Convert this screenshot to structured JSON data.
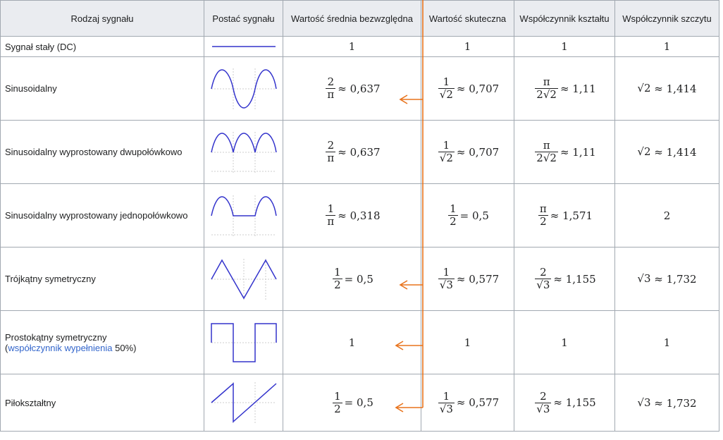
{
  "headers": {
    "type": "Rodzaj sygnału",
    "shape": "Postać sygnału",
    "mean": "Wartość średnia bezwzględna",
    "rms": "Wartość skuteczna",
    "form": "Współczynnik kształtu",
    "crest": "Współczynnik szczytu"
  },
  "rows": [
    {
      "name": "Sygnał stały (DC)",
      "wave": "dc-line",
      "mean": "1",
      "rms": "1",
      "form": "1",
      "crest": "1"
    },
    {
      "name": "Sinusoidalny",
      "wave": "sine-wave",
      "mean": {
        "num": "2",
        "den": "π",
        "rest": "≈ 0,637"
      },
      "rms": {
        "num": "1",
        "den": "√2",
        "rest": "≈ 0,707"
      },
      "form": {
        "num": "π",
        "den": "2√2",
        "rest": "≈ 1,11"
      },
      "crest": {
        "pre": "√2",
        "rest": "≈ 1,414"
      }
    },
    {
      "name": "Sinusoidalny wyprostowany dwupołówkowo",
      "wave": "full-wave-rectified",
      "mean": {
        "num": "2",
        "den": "π",
        "rest": "≈ 0,637"
      },
      "rms": {
        "num": "1",
        "den": "√2",
        "rest": "≈ 0,707"
      },
      "form": {
        "num": "π",
        "den": "2√2",
        "rest": "≈ 1,11"
      },
      "crest": {
        "pre": "√2",
        "rest": "≈ 1,414"
      }
    },
    {
      "name": "Sinusoidalny wyprostowany jednopołówkowo",
      "wave": "half-wave-rectified",
      "mean": {
        "num": "1",
        "den": "π",
        "rest": "≈ 0,318"
      },
      "rms": {
        "num": "1",
        "den": "2",
        "rest": "= 0,5"
      },
      "form": {
        "num": "π",
        "den": "2",
        "rest": "≈ 1,571"
      },
      "crest": "2"
    },
    {
      "name": "Trójkątny symetryczny",
      "wave": "triangle-wave",
      "mean": {
        "num": "1",
        "den": "2",
        "rest": "= 0,5"
      },
      "rms": {
        "num": "1",
        "den": "√3",
        "rest": "≈ 0,577"
      },
      "form": {
        "num": "2",
        "den": "√3",
        "rest": "≈ 1,155"
      },
      "crest": {
        "pre": "√3",
        "rest": "≈ 1,732"
      }
    },
    {
      "name": "Prostokątny symetryczny",
      "name_link": "współczynnik wypełnienia",
      "name_suffix": "50%)",
      "wave": "square-wave",
      "mean": "1",
      "rms": "1",
      "form": "1",
      "crest": "1"
    },
    {
      "name": "Piłokształtny",
      "wave": "sawtooth-wave",
      "mean": {
        "num": "1",
        "den": "2",
        "rest": "= 0,5"
      },
      "rms": {
        "num": "1",
        "den": "√3",
        "rest": "≈ 0,577"
      },
      "form": {
        "num": "2",
        "den": "√3",
        "rest": "≈ 1,155"
      },
      "crest": {
        "pre": "√3",
        "rest": "≈ 1,732"
      }
    }
  ],
  "colors": {
    "wave": "#3333cc",
    "annotation": "#e8731c",
    "border": "#a2a9b1",
    "header_bg": "#eaecf0",
    "link": "#3366cc"
  }
}
